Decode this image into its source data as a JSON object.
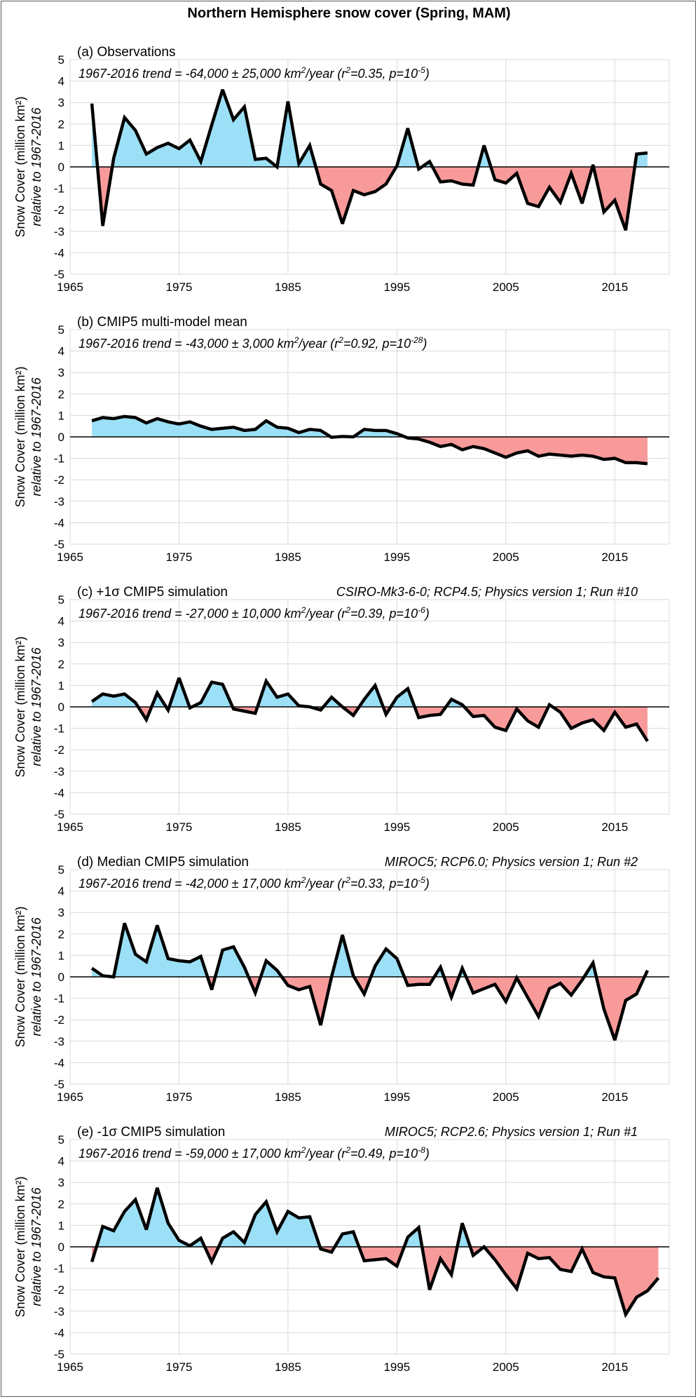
{
  "main_title": "Northern Hemisphere snow cover (Spring, MAM)",
  "colors": {
    "positive_fill": "#9be0f7",
    "negative_fill": "#f99a9a",
    "line": "#000000",
    "grid": "#d9d9d9"
  },
  "chart_data": [
    {
      "type": "area",
      "label": "(a) Observations",
      "model_info": "",
      "trend": {
        "prefix": "1967-2016 trend = -64,000 ± 25,000 km",
        "unit_sup": "2",
        "mid": "/year (r",
        "r_sup": "2",
        "mid2": "=0.35, p=10",
        "p_sup": "-5",
        "suffix": ")"
      },
      "ylabel": [
        "Snow Cover (million km²)",
        "relative to 1967-2016"
      ],
      "xlim": [
        1965,
        2020
      ],
      "ylim": [
        -5,
        5
      ],
      "xticks": [
        1965,
        1975,
        1985,
        1995,
        2005,
        2015
      ],
      "yticks": [
        -5,
        -4,
        -3,
        -2,
        -1,
        0,
        1,
        2,
        3,
        4,
        5
      ],
      "x_start": 1967,
      "values": [
        2.95,
        -2.75,
        0.4,
        2.3,
        1.7,
        0.6,
        0.9,
        1.1,
        0.85,
        1.25,
        0.25,
        1.95,
        3.6,
        2.2,
        2.8,
        0.35,
        0.4,
        0.0,
        3.05,
        0.15,
        1.0,
        -0.8,
        -1.1,
        -2.65,
        -1.1,
        -1.3,
        -1.15,
        -0.8,
        0.05,
        1.8,
        -0.1,
        0.25,
        -0.7,
        -0.65,
        -0.8,
        -0.85,
        1.0,
        -0.6,
        -0.75,
        -0.3,
        -1.7,
        -1.85,
        -0.95,
        -1.65,
        -0.3,
        -1.7,
        0.1,
        -2.1,
        -1.55,
        -2.95,
        0.6,
        0.65
      ]
    },
    {
      "type": "area",
      "label": "(b) CMIP5 multi-model mean",
      "model_info": "",
      "trend": {
        "prefix": "1967-2016 trend = -43,000 ± 3,000 km",
        "unit_sup": "2",
        "mid": "/year (r",
        "r_sup": "2",
        "mid2": "=0.92, p=10",
        "p_sup": "-28",
        "suffix": ")"
      },
      "ylabel": [
        "Snow Cover (million km²)",
        "relative to 1967-2016"
      ],
      "xlim": [
        1965,
        2020
      ],
      "ylim": [
        -5,
        5
      ],
      "xticks": [
        1965,
        1975,
        1985,
        1995,
        2005,
        2015
      ],
      "yticks": [
        -5,
        -4,
        -3,
        -2,
        -1,
        0,
        1,
        2,
        3,
        4,
        5
      ],
      "x_start": 1967,
      "values": [
        0.75,
        0.9,
        0.85,
        0.95,
        0.9,
        0.65,
        0.85,
        0.7,
        0.6,
        0.7,
        0.5,
        0.35,
        0.4,
        0.45,
        0.3,
        0.35,
        0.75,
        0.45,
        0.4,
        0.2,
        0.35,
        0.3,
        -0.02,
        0.02,
        0.0,
        0.35,
        0.3,
        0.3,
        0.15,
        -0.05,
        -0.1,
        -0.25,
        -0.45,
        -0.35,
        -0.6,
        -0.45,
        -0.55,
        -0.75,
        -0.95,
        -0.75,
        -0.65,
        -0.9,
        -0.8,
        -0.85,
        -0.9,
        -0.85,
        -0.9,
        -1.05,
        -1.0,
        -1.2,
        -1.2,
        -1.25
      ]
    },
    {
      "type": "area",
      "label": "(c) +1σ CMIP5 simulation",
      "model_info": "CSIRO-Mk3-6-0; RCP4.5; Physics version 1; Run #10",
      "trend": {
        "prefix": "1967-2016 trend = -27,000 ± 10,000 km",
        "unit_sup": "2",
        "mid": "/year (r",
        "r_sup": "2",
        "mid2": "=0.39, p=10",
        "p_sup": "-6",
        "suffix": ")"
      },
      "ylabel": [
        "Snow Cover (million km²)",
        "relative to 1967-2016"
      ],
      "xlim": [
        1965,
        2020
      ],
      "ylim": [
        -5,
        5
      ],
      "xticks": [
        1965,
        1975,
        1985,
        1995,
        2005,
        2015
      ],
      "yticks": [
        -5,
        -4,
        -3,
        -2,
        -1,
        0,
        1,
        2,
        3,
        4,
        5
      ],
      "x_start": 1967,
      "values": [
        0.25,
        0.6,
        0.5,
        0.6,
        0.2,
        -0.6,
        0.65,
        -0.15,
        1.35,
        -0.05,
        0.2,
        1.15,
        1.05,
        -0.1,
        -0.2,
        -0.3,
        1.2,
        0.45,
        0.6,
        0.05,
        0.0,
        -0.15,
        0.45,
        0.0,
        -0.4,
        0.35,
        1.0,
        -0.35,
        0.45,
        0.85,
        -0.5,
        -0.4,
        -0.35,
        0.35,
        0.1,
        -0.45,
        -0.4,
        -0.95,
        -1.1,
        -0.1,
        -0.65,
        -0.95,
        0.1,
        -0.25,
        -1.0,
        -0.75,
        -0.6,
        -1.1,
        -0.25,
        -0.95,
        -0.8,
        -1.6
      ]
    },
    {
      "type": "area",
      "label": "(d) Median CMIP5 simulation",
      "model_info": "MIROC5; RCP6.0; Physics version 1; Run #2",
      "trend": {
        "prefix": "1967-2016 trend = -42,000 ± 17,000 km",
        "unit_sup": "2",
        "mid": "/year (r",
        "r_sup": "2",
        "mid2": "=0.33, p=10",
        "p_sup": "-5",
        "suffix": ")"
      },
      "ylabel": [
        "Snow Cover (million km²)",
        "relative to 1967-2016"
      ],
      "xlim": [
        1965,
        2020
      ],
      "ylim": [
        -5,
        5
      ],
      "xticks": [
        1965,
        1975,
        1985,
        1995,
        2005,
        2015
      ],
      "yticks": [
        -5,
        -4,
        -3,
        -2,
        -1,
        0,
        1,
        2,
        3,
        4,
        5
      ],
      "x_start": 1967,
      "values": [
        0.4,
        0.05,
        0.0,
        2.5,
        1.05,
        0.7,
        2.4,
        0.85,
        0.75,
        0.7,
        0.95,
        -0.6,
        1.25,
        1.4,
        0.45,
        -0.75,
        0.75,
        0.3,
        -0.4,
        -0.6,
        -0.45,
        -2.25,
        0.0,
        1.95,
        0.05,
        -0.8,
        0.5,
        1.3,
        0.85,
        -0.4,
        -0.35,
        -0.35,
        0.45,
        -0.95,
        0.4,
        -0.75,
        -0.55,
        -0.35,
        -1.15,
        -0.05,
        -0.95,
        -1.85,
        -0.55,
        -0.3,
        -0.85,
        -0.15,
        0.65,
        -1.5,
        -2.95,
        -1.1,
        -0.8,
        0.3
      ]
    },
    {
      "type": "area",
      "label": "(e) -1σ CMIP5 simulation",
      "model_info": "MIROC5; RCP2.6; Physics version 1; Run #1",
      "trend": {
        "prefix": "1967-2016 trend = -59,000 ± 17,000 km",
        "unit_sup": "2",
        "mid": "/year (r",
        "r_sup": "2",
        "mid2": "=0.49, p=10",
        "p_sup": "-8",
        "suffix": ")"
      },
      "ylabel": [
        "Snow Cover (million km²)",
        "relative to 1967-2016"
      ],
      "xlim": [
        1965,
        2020
      ],
      "ylim": [
        -5,
        5
      ],
      "xticks": [
        1965,
        1975,
        1985,
        1995,
        2005,
        2015
      ],
      "yticks": [
        -5,
        -4,
        -3,
        -2,
        -1,
        0,
        1,
        2,
        3,
        4,
        5
      ],
      "x_start": 1967,
      "values": [
        -0.7,
        0.95,
        0.75,
        1.65,
        2.2,
        0.8,
        2.75,
        1.1,
        0.3,
        0.05,
        0.4,
        -0.7,
        0.4,
        0.7,
        0.2,
        1.5,
        2.1,
        0.7,
        1.65,
        1.35,
        1.4,
        -0.1,
        -0.25,
        0.6,
        0.7,
        -0.65,
        -0.6,
        -0.55,
        -0.9,
        0.45,
        0.9,
        -2.0,
        -0.55,
        -1.3,
        1.1,
        -0.4,
        0.0,
        -0.6,
        -1.3,
        -1.95,
        -0.3,
        -0.55,
        -0.5,
        -1.05,
        -1.15,
        -0.1,
        -1.2,
        -1.4,
        -1.45,
        -3.15,
        -2.35,
        -2.05,
        -1.45
      ]
    }
  ]
}
